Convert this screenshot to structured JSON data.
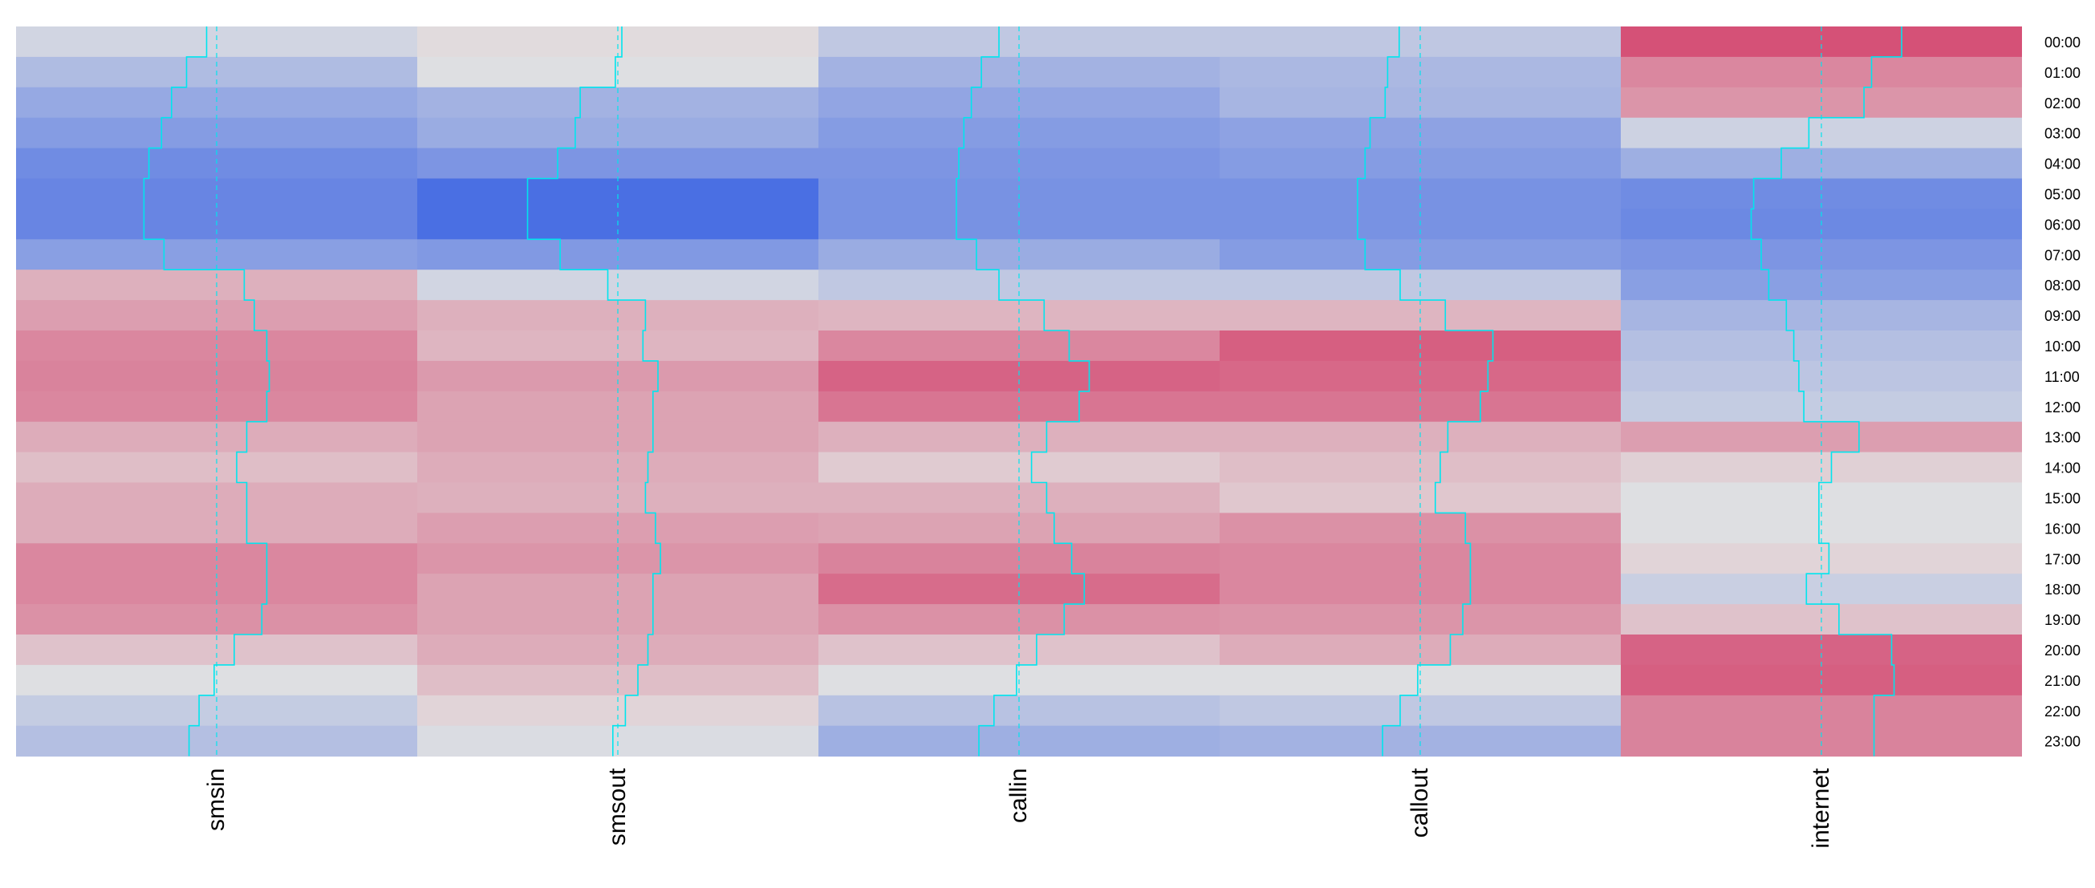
{
  "chart_data": {
    "type": "heatmap",
    "title": "",
    "xlabel": "",
    "ylabel": "",
    "columns": [
      "smsin",
      "smsout",
      "callin",
      "callout",
      "internet"
    ],
    "rows": [
      "00:00",
      "01:00",
      "02:00",
      "03:00",
      "04:00",
      "05:00",
      "06:00",
      "07:00",
      "08:00",
      "09:00",
      "10:00",
      "11:00",
      "12:00",
      "13:00",
      "14:00",
      "15:00",
      "16:00",
      "17:00",
      "18:00",
      "19:00",
      "20:00",
      "21:00",
      "22:00",
      "23:00"
    ],
    "color_scale": {
      "low": "#4a6fe3",
      "mid": "#e2e2e2",
      "high": "#d33f6a",
      "range": [
        -1.8,
        1.8
      ]
    },
    "values": [
      [
        -0.2,
        0.08,
        -0.4,
        -0.42,
        1.6
      ],
      [
        -0.6,
        -0.05,
        -0.75,
        -0.65,
        1.0
      ],
      [
        -0.9,
        -0.75,
        -0.95,
        -0.7,
        0.85
      ],
      [
        -1.1,
        -0.85,
        -1.1,
        -1.0,
        -0.25
      ],
      [
        -1.35,
        -1.2,
        -1.2,
        -1.1,
        -0.8
      ],
      [
        -1.45,
        -1.8,
        -1.25,
        -1.25,
        -1.35
      ],
      [
        -1.45,
        -1.8,
        -1.25,
        -1.25,
        -1.4
      ],
      [
        -1.05,
        -1.15,
        -0.85,
        -1.1,
        -1.2
      ],
      [
        0.55,
        -0.2,
        -0.4,
        -0.4,
        -1.05
      ],
      [
        0.75,
        0.55,
        0.5,
        0.5,
        -0.7
      ],
      [
        1.0,
        0.5,
        1.0,
        1.45,
        -0.55
      ],
      [
        1.05,
        0.8,
        1.4,
        1.35,
        -0.45
      ],
      [
        1.0,
        0.7,
        1.2,
        1.2,
        -0.35
      ],
      [
        0.6,
        0.7,
        0.55,
        0.55,
        0.75
      ],
      [
        0.4,
        0.6,
        0.25,
        0.4,
        0.2
      ],
      [
        0.6,
        0.55,
        0.55,
        0.3,
        -0.05
      ],
      [
        0.6,
        0.75,
        0.7,
        0.9,
        -0.05
      ],
      [
        1.0,
        0.85,
        1.05,
        1.0,
        0.15
      ],
      [
        1.0,
        0.7,
        1.3,
        1.0,
        -0.3
      ],
      [
        0.9,
        0.7,
        0.9,
        0.85,
        0.35
      ],
      [
        0.35,
        0.6,
        0.35,
        0.6,
        1.4
      ],
      [
        -0.05,
        0.4,
        -0.05,
        -0.05,
        1.45
      ],
      [
        -0.35,
        0.15,
        -0.5,
        -0.4,
        1.05
      ],
      [
        -0.55,
        -0.1,
        -0.8,
        -0.75,
        1.05
      ]
    ],
    "trace_color": "#00e5ee",
    "reference_line_style": "dashed"
  }
}
